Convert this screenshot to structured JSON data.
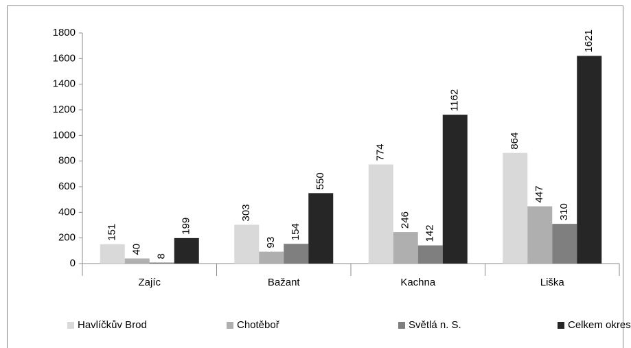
{
  "chart_data": {
    "type": "bar",
    "categories": [
      "Zajíc",
      "Bažant",
      "Kachna",
      "Liška"
    ],
    "series": [
      {
        "name": "Havlíčkův Brod",
        "color": "#d9d9d9",
        "values": [
          151,
          303,
          774,
          864
        ]
      },
      {
        "name": "Chotěboř",
        "color": "#afafaf",
        "values": [
          40,
          93,
          246,
          447
        ]
      },
      {
        "name": "Světlá n. S.",
        "color": "#7f7f7f",
        "values": [
          8,
          154,
          142,
          310
        ]
      },
      {
        "name": "Celkem okres",
        "color": "#262626",
        "values": [
          199,
          550,
          1162,
          1621
        ]
      }
    ],
    "ylim": [
      0,
      1800
    ],
    "yticks": [
      0,
      200,
      400,
      600,
      800,
      1000,
      1200,
      1400,
      1600,
      1800
    ],
    "grid": false,
    "legend": "bottom"
  }
}
